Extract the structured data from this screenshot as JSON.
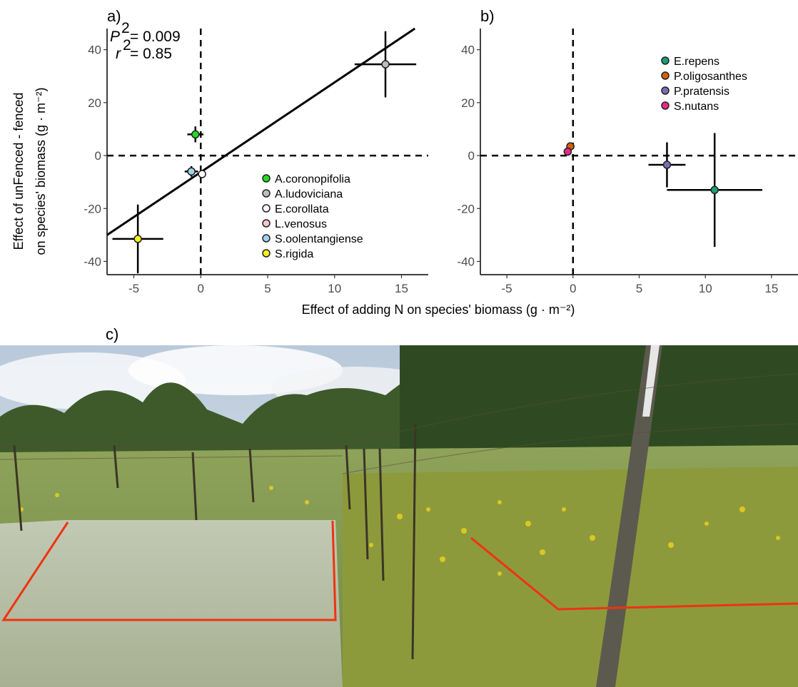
{
  "panels": {
    "a_label": "a)",
    "b_label": "b)",
    "c_label": "c)"
  },
  "axes": {
    "ylabel_line1": "Effect of unFenced - fenced",
    "ylabel_line2": "on species' biomass (g · m⁻²)",
    "xlabel": "Effect of adding N on species' biomass (g · m⁻²)"
  },
  "stats": {
    "p_prefix": "P",
    "p_value": "= 0.009",
    "r2_prefix": "r",
    "r2_value": "= 0.85",
    "superscript": "2"
  },
  "chart_data": [
    {
      "type": "scatter",
      "panel": "a)",
      "xlim": [
        -7,
        17
      ],
      "ylim": [
        -45,
        48
      ],
      "x_ticks": [
        -5,
        0,
        5,
        10,
        15
      ],
      "y_ticks": [
        -40,
        -20,
        0,
        20,
        40
      ],
      "reference_lines": {
        "x": 0,
        "y": 0,
        "style": "dashed"
      },
      "regression_line": {
        "x": [
          -7,
          16
        ],
        "y": [
          -30,
          48
        ]
      },
      "stats_text": [
        "P = 0.009",
        "r2 = 0.85"
      ],
      "legend_position": "bottom-right",
      "series": [
        {
          "name": "A.coronopifolia",
          "color": "#22dd22",
          "x": -0.4,
          "y": 8,
          "xerr": 0.6,
          "yerr": 3
        },
        {
          "name": "A.ludoviciana",
          "color": "#bdbdbd",
          "x": 13.8,
          "y": 34.5,
          "xerr": 2.3,
          "yerr": 12.5
        },
        {
          "name": "E.corollata",
          "color": "#ffffff",
          "x": 0.1,
          "y": -7,
          "xerr": 0.3,
          "yerr": 1.5
        },
        {
          "name": "L.venosus",
          "color": "#f7c6c9",
          "x": -0.7,
          "y": -6,
          "xerr": 0.3,
          "yerr": 1
        },
        {
          "name": "S.oolentangiense",
          "color": "#9fd3ec",
          "x": -0.7,
          "y": -6,
          "xerr": 0.5,
          "yerr": 2
        },
        {
          "name": "S.rigida",
          "color": "#f4f11c",
          "x": -4.7,
          "y": -31.5,
          "xerr": 1.9,
          "yerr": 13
        }
      ]
    },
    {
      "type": "scatter",
      "panel": "b)",
      "xlim": [
        -7,
        17
      ],
      "ylim": [
        -45,
        48
      ],
      "x_ticks": [
        -5,
        0,
        5,
        10,
        15
      ],
      "y_ticks": [
        -40,
        -20,
        0,
        20,
        40
      ],
      "reference_lines": {
        "x": 0,
        "y": 0,
        "style": "dashed"
      },
      "legend_position": "top-right",
      "series": [
        {
          "name": "E.repens",
          "color": "#1b9e77",
          "x": 10.7,
          "y": -13,
          "xerr": 3.6,
          "yerr": 21.5
        },
        {
          "name": "P.oligosanthes",
          "color": "#d95f02",
          "x": -0.2,
          "y": 3.5,
          "xerr": 0.3,
          "yerr": 1
        },
        {
          "name": "P.pratensis",
          "color": "#7570b3",
          "x": 7.1,
          "y": -3.5,
          "xerr": 1.4,
          "yerr": 8.5
        },
        {
          "name": "S.nutans",
          "color": "#e7298a",
          "x": -0.4,
          "y": 1.5,
          "xerr": 0.3,
          "yerr": 1
        }
      ]
    }
  ]
}
